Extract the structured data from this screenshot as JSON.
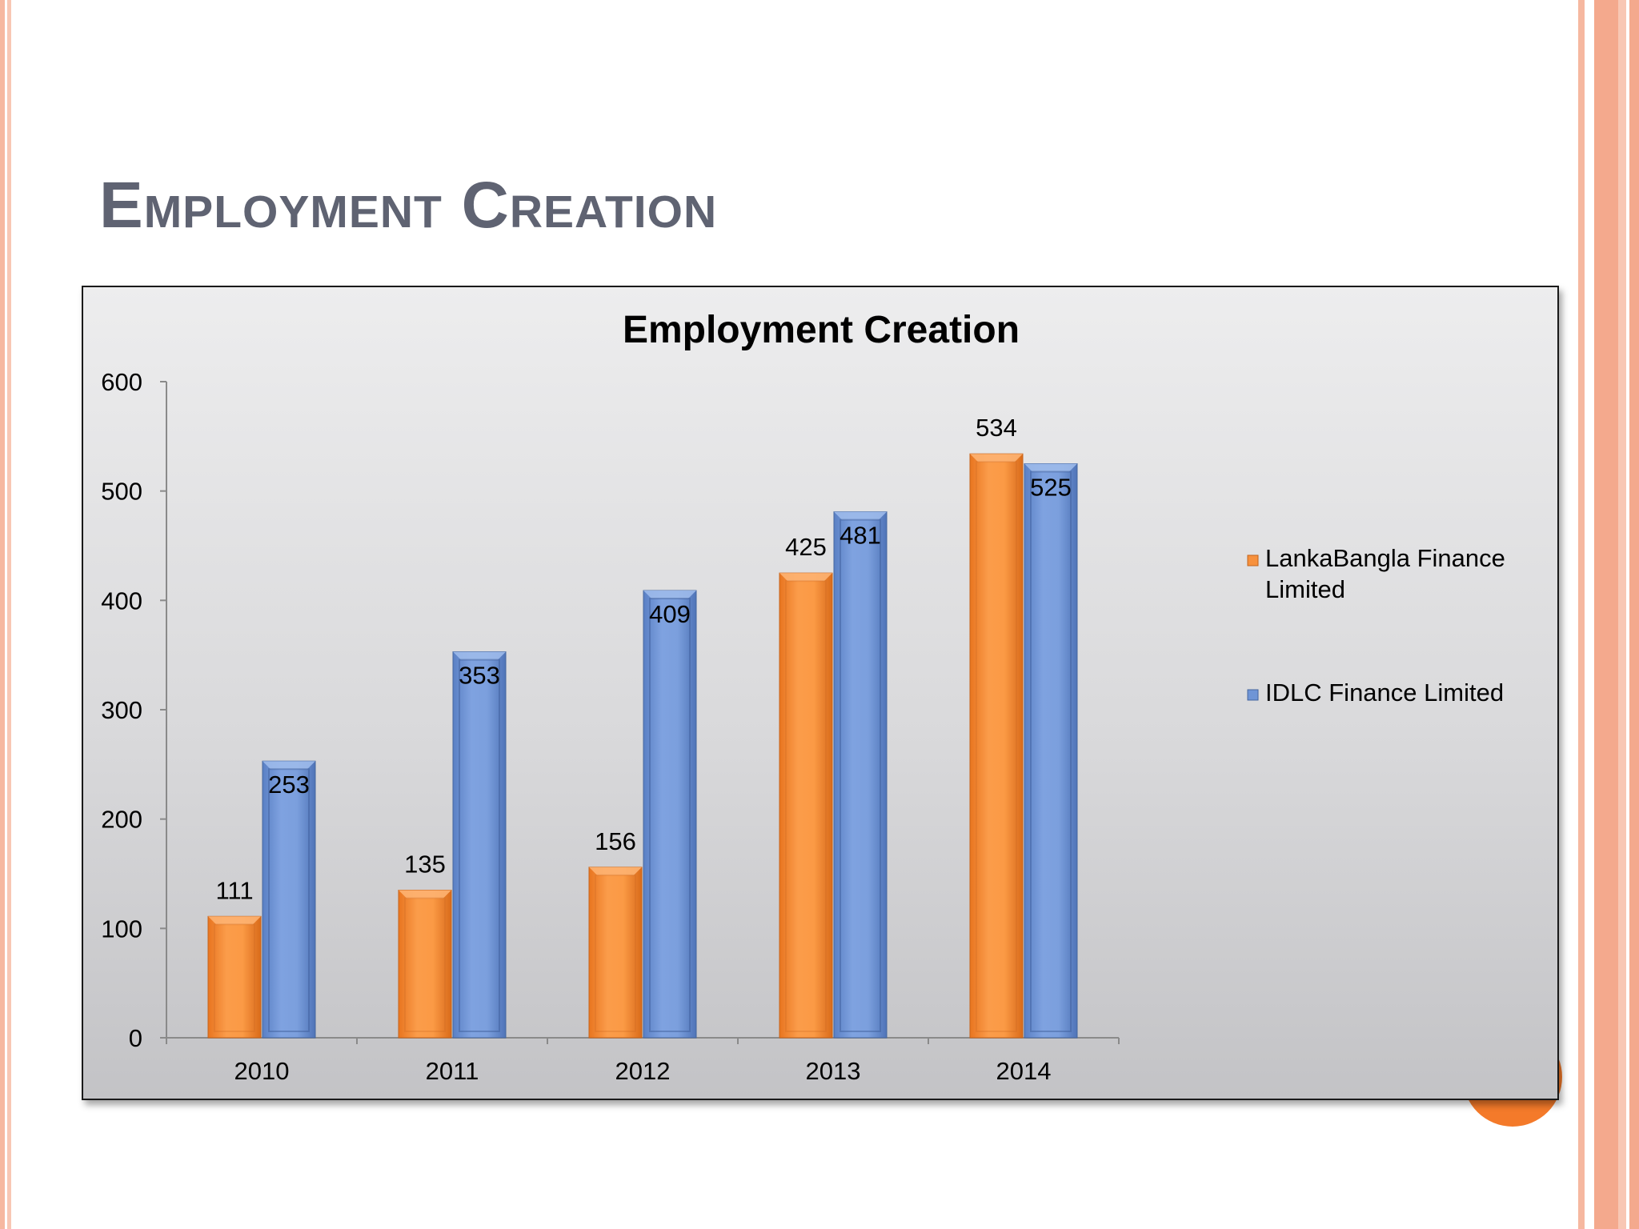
{
  "slide": {
    "title": "Employment Creation"
  },
  "chart_data": {
    "type": "bar",
    "title": "Employment Creation",
    "categories": [
      "2010",
      "2011",
      "2012",
      "2013",
      "2014"
    ],
    "series": [
      {
        "name": "LankaBangla Finance Limited",
        "values": [
          111,
          135,
          156,
          425,
          534
        ],
        "color": "#f7913d"
      },
      {
        "name": "IDLC Finance Limited",
        "values": [
          253,
          353,
          409,
          481,
          525
        ],
        "color": "#6f95d6"
      }
    ],
    "ylim": [
      0,
      600
    ],
    "yticks": [
      0,
      100,
      200,
      300,
      400,
      500,
      600
    ],
    "ytick_labels": [
      "0",
      "100",
      "200",
      "300",
      "400",
      "500",
      "600"
    ],
    "legend_labels": {
      "series1_line1": "LankaBangla Finance",
      "series1_line2": "Limited",
      "series2": "IDLC Finance Limited"
    },
    "legend_position": "right",
    "grid": false,
    "data_labels": true
  }
}
